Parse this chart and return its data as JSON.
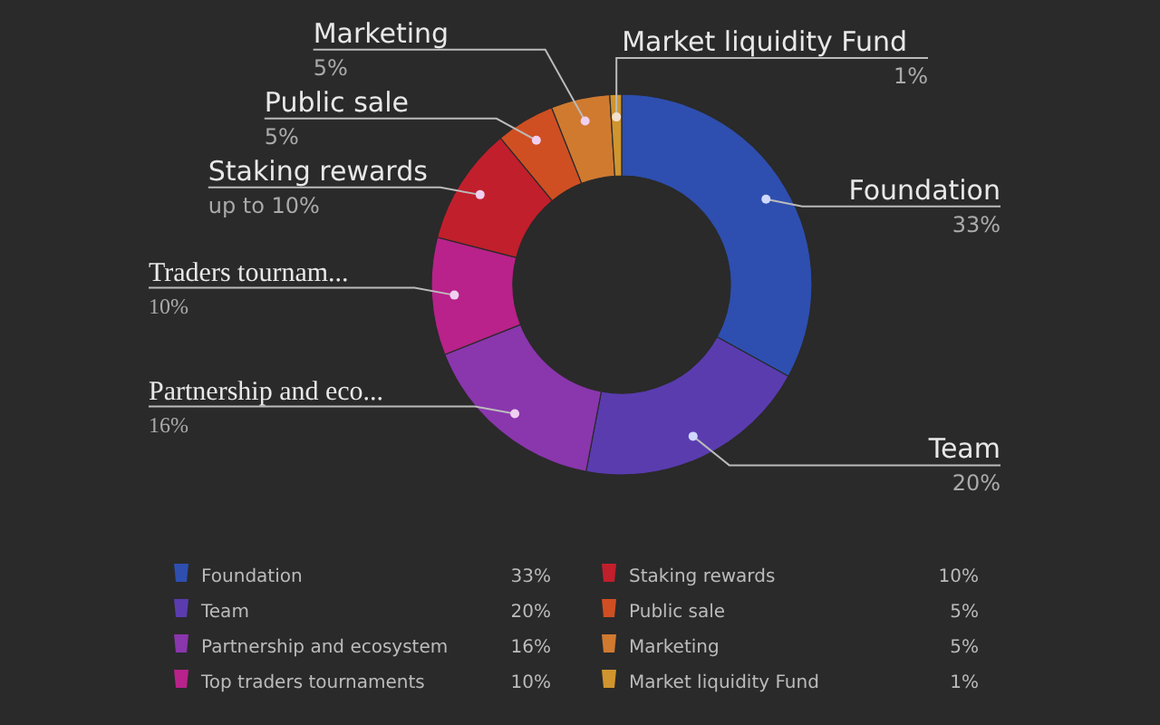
{
  "chart_data": {
    "type": "donut",
    "categories": [
      "Foundation",
      "Team",
      "Partnership and ecosystem",
      "Top traders tournaments",
      "Staking rewards",
      "Public sale",
      "Marketing",
      "Market liquidity Fund"
    ],
    "values": [
      33,
      20,
      16,
      10,
      10,
      5,
      5,
      1
    ],
    "colors": [
      "#2e4fb0",
      "#5a3caf",
      "#8a36ad",
      "#b8228a",
      "#c11f2c",
      "#cf4f22",
      "#d07a30",
      "#d0952e"
    ],
    "value_labels": [
      "33%",
      "20%",
      "16%",
      "10%",
      "up to 10%",
      "5%",
      "5%",
      "1%"
    ],
    "annotations": [
      {
        "text": "Partnership and eco...",
        "x": "Partnership and ecosystem"
      },
      {
        "text": "Traders tournam...",
        "x": "Top traders tournaments"
      }
    ],
    "legend": "bottom"
  }
}
